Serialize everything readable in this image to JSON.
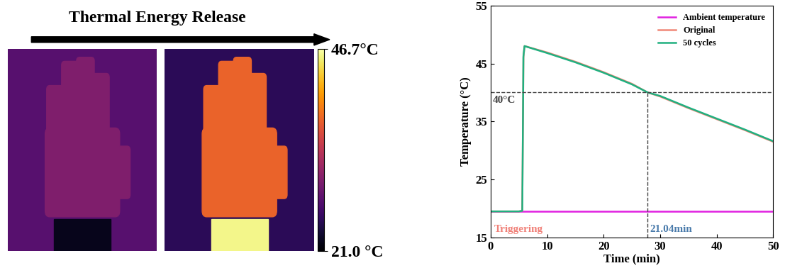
{
  "chart_data": [
    {
      "type": "thermal_image",
      "title": "Thermal Energy Release",
      "colorbar": {
        "range": [
          21.0,
          46.7
        ],
        "ticks": [
          {
            "value": 46.7,
            "label": "46.7°C"
          },
          {
            "value": 21.0,
            "label": "21.0 °C"
          }
        ]
      }
    },
    {
      "type": "line",
      "xlabel": "Time (min)",
      "ylabel": "Temperature (°C)",
      "x": [
        0,
        5,
        5.6,
        5.8,
        6,
        10,
        15,
        20,
        25,
        27.8,
        30,
        35,
        40,
        45,
        50
      ],
      "series": [
        {
          "name": "Ambient temperature",
          "color": "#e020e0",
          "values": [
            19.5,
            19.5,
            19.5,
            19.5,
            19.5,
            19.5,
            19.5,
            19.5,
            19.5,
            19.5,
            19.5,
            19.5,
            19.5,
            19.5,
            19.5
          ]
        },
        {
          "name": "Original",
          "color": "#f08878",
          "values": [
            19.5,
            19.5,
            19.6,
            46.0,
            48.0,
            46.9,
            45.3,
            43.5,
            41.5,
            40.0,
            39.3,
            37.3,
            35.4,
            33.5,
            31.5
          ]
        },
        {
          "name": "50 cycles",
          "color": "#20b080",
          "values": [
            19.5,
            19.5,
            19.6,
            46.2,
            48.0,
            46.8,
            45.2,
            43.4,
            41.4,
            40.0,
            39.4,
            37.4,
            35.5,
            33.6,
            31.6
          ]
        }
      ],
      "xlim": [
        0,
        50
      ],
      "xticks": [
        0,
        10,
        20,
        30,
        40,
        50
      ],
      "ylim": [
        15,
        55
      ],
      "yticks": [
        15,
        25,
        35,
        45,
        55
      ],
      "hline": {
        "y": 40,
        "label": "40°C"
      },
      "vline": {
        "x": 27.8,
        "label": "21.04min",
        "color": "#4a7bab"
      },
      "annotations": [
        {
          "text": "Triggering",
          "color": "#f08078"
        }
      ],
      "legend": "upper right"
    }
  ]
}
